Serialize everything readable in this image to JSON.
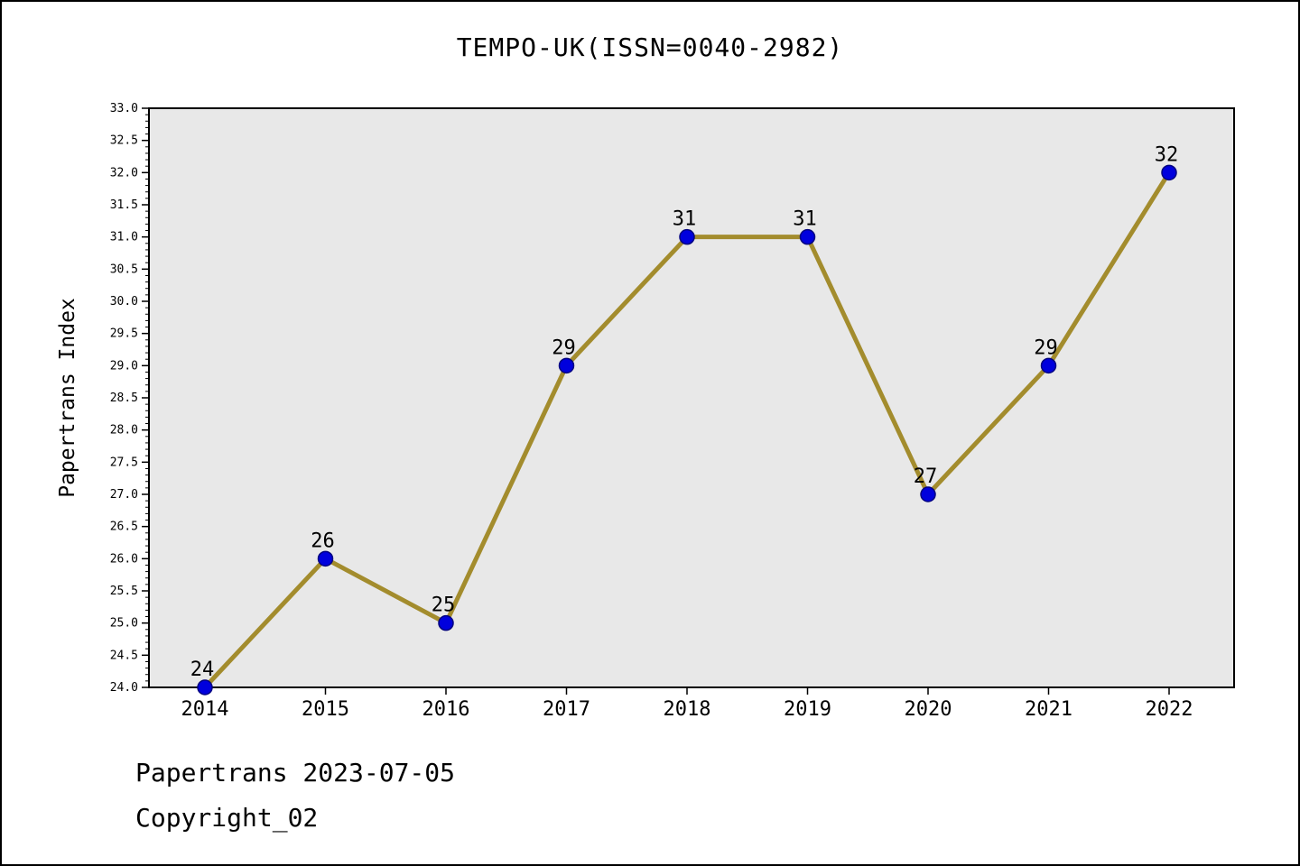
{
  "title": "TEMPO-UK(ISSN=0040-2982)",
  "footer": {
    "line1": "Papertrans 2023-07-05",
    "line2": "Copyright_02"
  },
  "chart_data": {
    "type": "line",
    "title": "TEMPO-UK(ISSN=0040-2982)",
    "categories": [
      "2014",
      "2015",
      "2016",
      "2017",
      "2018",
      "2019",
      "2020",
      "2021",
      "2022"
    ],
    "values": [
      24,
      26,
      25,
      29,
      31,
      31,
      27,
      29,
      32
    ],
    "xlabel": "",
    "ylabel": "Papertrans Index",
    "ylim": [
      24.0,
      33.0
    ],
    "ytick_step": 0.5,
    "yminor_step": 0.1,
    "grid": false,
    "legend": "none",
    "colors": {
      "line": "#a38c2d",
      "marker": "#0000dd",
      "marker_edge": "#000080",
      "plot_bg": "#e8e8e8",
      "axis": "#000000",
      "text": "#000000"
    }
  }
}
